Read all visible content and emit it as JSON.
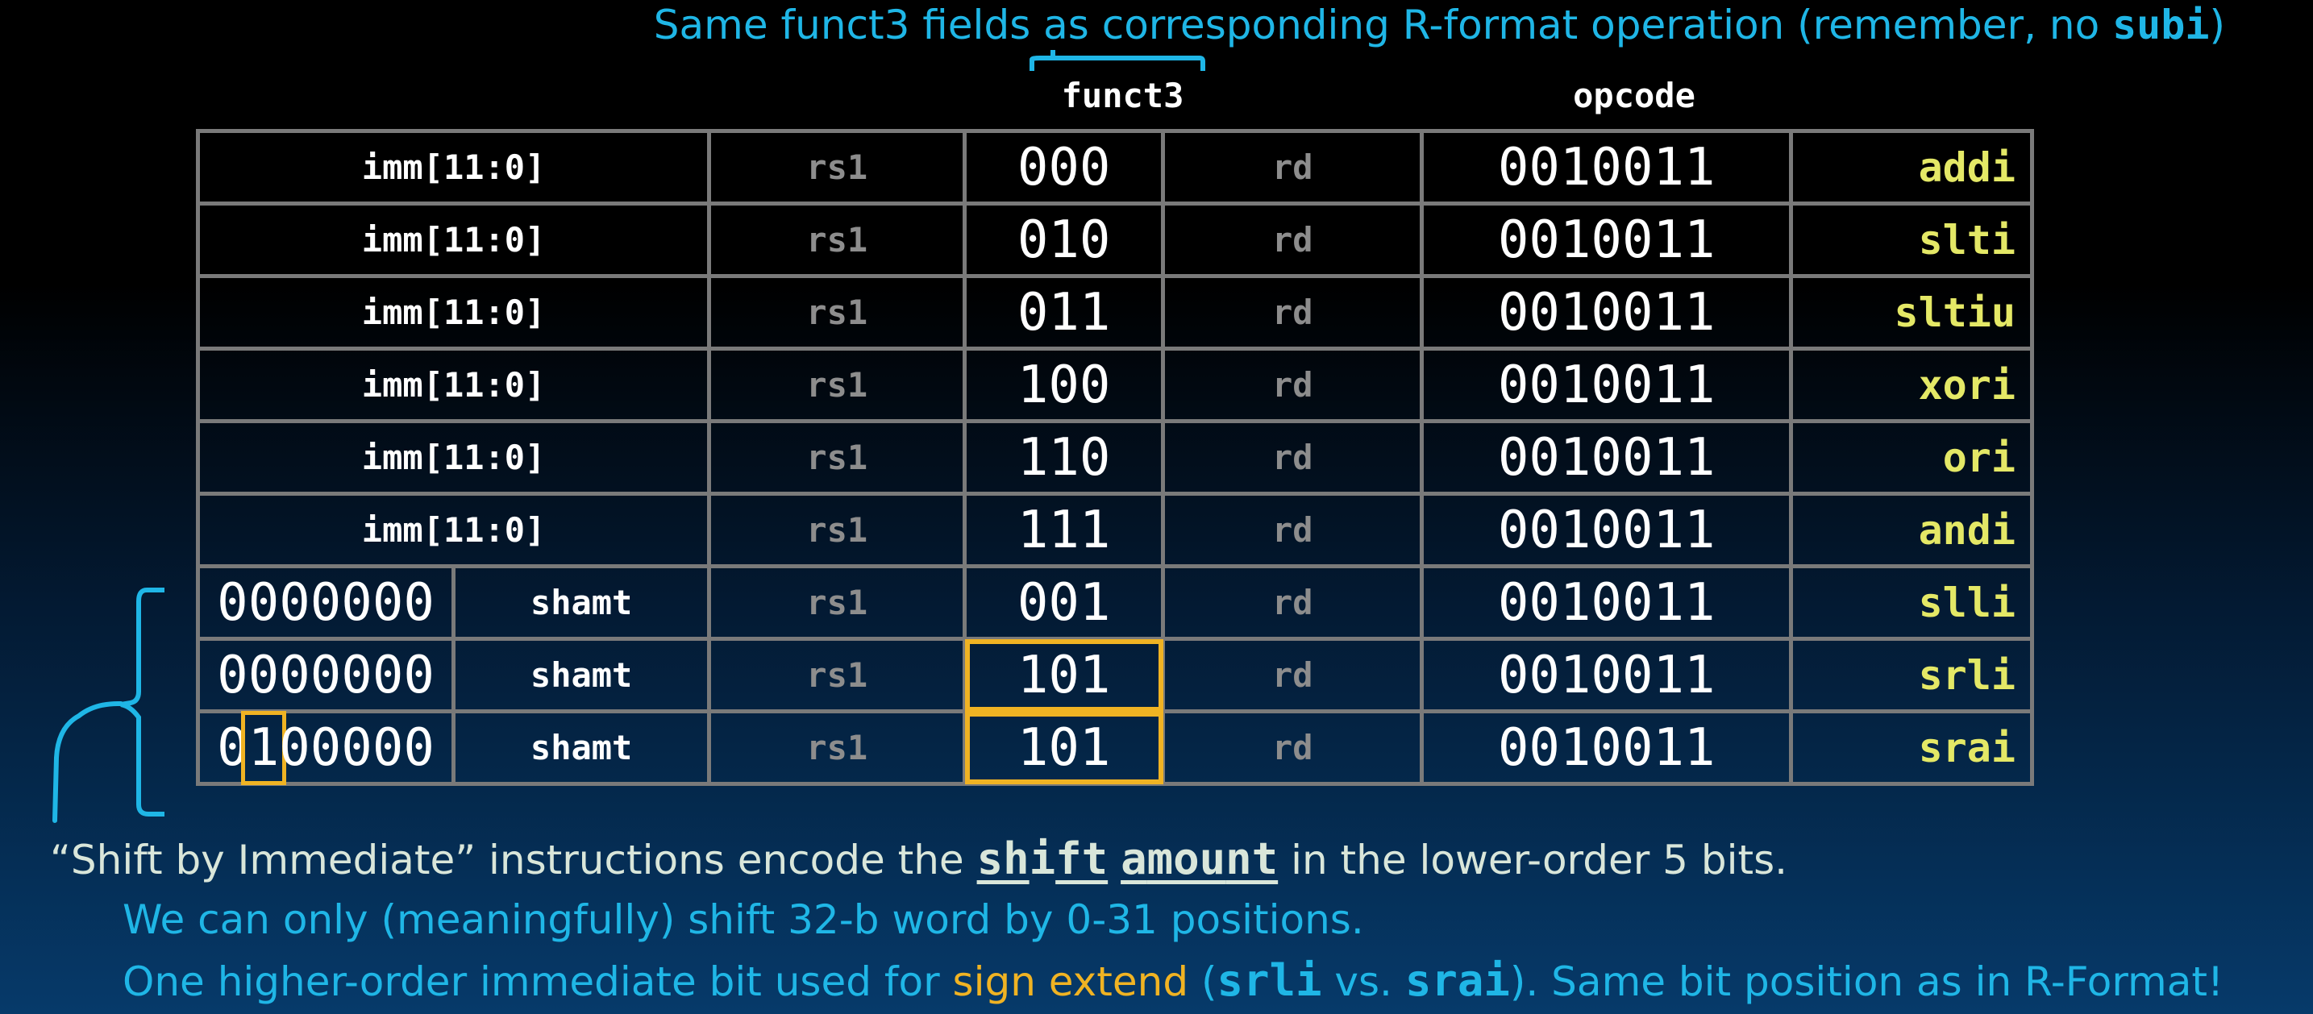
{
  "top_note": {
    "prefix": "Same funct3 fields as corresponding R-format operation (remember, no ",
    "code": "subi",
    "suffix": ")"
  },
  "headers": {
    "funct3": "funct3",
    "opcode": "opcode"
  },
  "table": {
    "i_rows": [
      {
        "imm": "imm[11:0]",
        "rs1": "rs1",
        "funct3": "000",
        "rd": "rd",
        "opcode": "0010011",
        "name": "addi"
      },
      {
        "imm": "imm[11:0]",
        "rs1": "rs1",
        "funct3": "010",
        "rd": "rd",
        "opcode": "0010011",
        "name": "slti"
      },
      {
        "imm": "imm[11:0]",
        "rs1": "rs1",
        "funct3": "011",
        "rd": "rd",
        "opcode": "0010011",
        "name": "sltiu"
      },
      {
        "imm": "imm[11:0]",
        "rs1": "rs1",
        "funct3": "100",
        "rd": "rd",
        "opcode": "0010011",
        "name": "xori"
      },
      {
        "imm": "imm[11:0]",
        "rs1": "rs1",
        "funct3": "110",
        "rd": "rd",
        "opcode": "0010011",
        "name": "ori"
      },
      {
        "imm": "imm[11:0]",
        "rs1": "rs1",
        "funct3": "111",
        "rd": "rd",
        "opcode": "0010011",
        "name": "andi"
      }
    ],
    "shift_rows": [
      {
        "upper": "0000000",
        "shamt": "shamt",
        "rs1": "rs1",
        "funct3": "001",
        "rd": "rd",
        "opcode": "0010011",
        "name": "slli"
      },
      {
        "upper": "0000000",
        "shamt": "shamt",
        "rs1": "rs1",
        "funct3": "101",
        "rd": "rd",
        "opcode": "0010011",
        "name": "srli"
      },
      {
        "upper_a": "0",
        "upper_b": "1",
        "upper_c": "00000",
        "shamt": "shamt",
        "rs1": "rs1",
        "funct3": "101",
        "rd": "rd",
        "opcode": "0010011",
        "name": "srai"
      }
    ]
  },
  "notes": {
    "line1": {
      "prefix": "“Shift by Immediate” instructions encode the ",
      "w1_a": "sh",
      "w1_b": "i",
      "w1_c": "ft",
      "w2_a": "a",
      "w2_b": "mou",
      "w2_c": "nt",
      "suffix": " in the lower-order 5 bits."
    },
    "line2": "We can only (meaningfully) shift 32-b word by 0-31 positions.",
    "line3": {
      "prefix": "One higher-order immediate bit used for ",
      "orange": "sign extend",
      "mid1": " (",
      "code1": "srli",
      "mid2": " vs. ",
      "code2": "srai",
      "suffix": "). Same bit position as in R-Format!"
    }
  },
  "colors": {
    "accent_cyan": "#1fb6e6",
    "highlight_orange": "#f0b323",
    "mnemonic_yellow": "#e4e866",
    "grid_gray": "#7a7a7a"
  }
}
